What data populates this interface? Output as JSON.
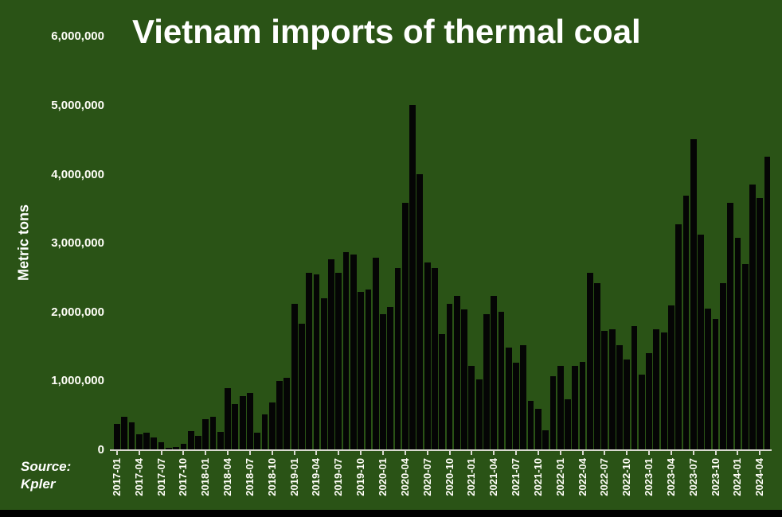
{
  "chart_data": {
    "type": "bar",
    "title": "Vietnam imports of thermal coal",
    "ylabel": "Metric tons",
    "ylim": [
      0,
      6000000
    ],
    "grid": false,
    "legend": false,
    "x_tick_interval": 3,
    "background_color": "#2a5316",
    "bar_color": "#050505",
    "axis_color": "#d9d9d0",
    "text_color": "#ffffff",
    "y_ticks": [
      {
        "value": 6000000,
        "label": "6,000,000"
      },
      {
        "value": 5000000,
        "label": "5,000,000"
      },
      {
        "value": 4000000,
        "label": "4,000,000"
      },
      {
        "value": 3000000,
        "label": "3,000,000"
      },
      {
        "value": 2000000,
        "label": "2,000,000"
      },
      {
        "value": 1000000,
        "label": "1,000,000"
      },
      {
        "value": 0,
        "label": "0"
      }
    ],
    "categories": [
      "2017-01",
      "2017-02",
      "2017-03",
      "2017-04",
      "2017-05",
      "2017-06",
      "2017-07",
      "2017-08",
      "2017-09",
      "2017-10",
      "2017-11",
      "2017-12",
      "2018-01",
      "2018-02",
      "2018-03",
      "2018-04",
      "2018-05",
      "2018-06",
      "2018-07",
      "2018-08",
      "2018-09",
      "2018-10",
      "2018-11",
      "2018-12",
      "2019-01",
      "2019-02",
      "2019-03",
      "2019-04",
      "2019-05",
      "2019-06",
      "2019-07",
      "2019-08",
      "2019-09",
      "2019-10",
      "2019-11",
      "2019-12",
      "2020-01",
      "2020-02",
      "2020-03",
      "2020-04",
      "2020-05",
      "2020-06",
      "2020-07",
      "2020-08",
      "2020-09",
      "2020-10",
      "2020-11",
      "2020-12",
      "2021-01",
      "2021-02",
      "2021-03",
      "2021-04",
      "2021-05",
      "2021-06",
      "2021-07",
      "2021-08",
      "2021-09",
      "2021-10",
      "2021-11",
      "2021-12",
      "2022-01",
      "2022-02",
      "2022-03",
      "2022-04",
      "2022-05",
      "2022-06",
      "2022-07",
      "2022-08",
      "2022-09",
      "2022-10",
      "2022-11",
      "2022-12",
      "2023-01",
      "2023-02",
      "2023-03",
      "2023-04",
      "2023-05",
      "2023-06",
      "2023-07",
      "2023-08",
      "2023-09",
      "2023-10",
      "2023-11",
      "2023-12",
      "2024-01",
      "2024-02",
      "2024-03",
      "2024-04",
      "2024-05"
    ],
    "values": [
      380000,
      480000,
      400000,
      230000,
      250000,
      180000,
      110000,
      30000,
      50000,
      90000,
      280000,
      210000,
      450000,
      490000,
      270000,
      900000,
      670000,
      790000,
      830000,
      250000,
      520000,
      690000,
      1000000,
      1050000,
      2130000,
      1840000,
      2580000,
      2550000,
      2210000,
      2770000,
      2580000,
      2870000,
      2840000,
      2300000,
      2330000,
      2800000,
      1980000,
      2080000,
      2650000,
      3590000,
      5010000,
      4010000,
      2720000,
      2640000,
      1690000,
      2120000,
      2240000,
      2040000,
      1220000,
      1030000,
      1970000,
      2240000,
      2010000,
      1490000,
      1270000,
      1530000,
      720000,
      600000,
      290000,
      1070000,
      1220000,
      740000,
      1220000,
      1280000,
      2580000,
      2430000,
      1730000,
      1750000,
      1520000,
      1320000,
      1800000,
      1100000,
      1410000,
      1760000,
      1710000,
      2100000,
      3280000,
      3690000,
      4510000,
      3130000,
      2050000,
      1900000,
      2430000,
      3590000,
      3080000,
      2700000,
      3860000,
      3660000,
      4260000
    ]
  },
  "source": {
    "line1": "Source:",
    "line2": "Kpler"
  }
}
